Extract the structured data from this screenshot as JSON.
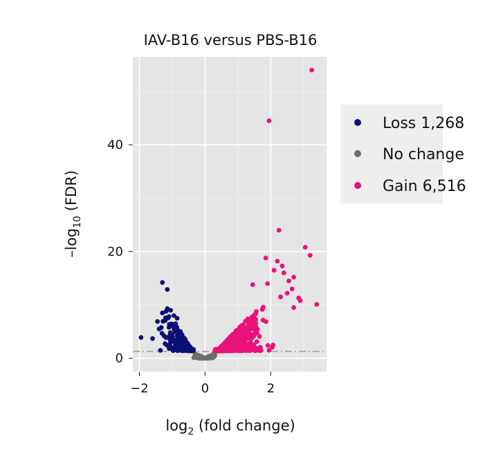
{
  "chart_data": {
    "type": "scatter",
    "title": "IAV-B16 versus PBS-B16",
    "xlabel": {
      "base": "log",
      "sub": "2",
      "rest": " (fold change)"
    },
    "ylabel": {
      "prefix": "–log",
      "sub": "10",
      "rest": " (FDR)"
    },
    "xlim": [
      -2.2,
      3.7
    ],
    "ylim": [
      -2.5,
      56.5
    ],
    "xticks": [
      -2,
      0,
      2
    ],
    "xtick_labels": [
      "−2",
      "0",
      "2"
    ],
    "yticks": [
      0,
      20,
      40
    ],
    "ytick_labels": [
      "0",
      "20",
      "40"
    ],
    "grid": true,
    "panel_background": "#e5e5e5",
    "threshold_line": {
      "y": 1.3,
      "style": "dash-dot",
      "color": "#aaaaaa"
    },
    "legend": {
      "placement": "right"
    },
    "series": [
      {
        "name": "Loss",
        "count_label": "1,268",
        "color": "#0a1172",
        "points": [
          [
            -1.95,
            3.9
          ],
          [
            -1.6,
            3.7
          ],
          [
            -1.3,
            14.2
          ],
          [
            -1.15,
            12.9
          ],
          [
            -1.4,
            5.5
          ],
          [
            -1.45,
            6.9
          ],
          [
            -1.2,
            7.6
          ],
          [
            -1.3,
            8.5
          ],
          [
            -1.05,
            9.0
          ],
          [
            -1.15,
            9.3
          ],
          [
            -0.95,
            8.0
          ],
          [
            -0.85,
            7.5
          ],
          [
            -0.75,
            5.0
          ],
          [
            -0.9,
            6.5
          ],
          [
            -1.1,
            5.8
          ],
          [
            -0.7,
            4.2
          ],
          [
            -0.6,
            3.5
          ],
          [
            -0.55,
            2.9
          ],
          [
            -0.5,
            2.4
          ],
          [
            -0.45,
            2.1
          ],
          [
            -1.0,
            4.5
          ],
          [
            -1.25,
            4.2
          ],
          [
            -0.8,
            3.2
          ]
        ],
        "cloud": {
          "x_center": -0.9,
          "x_spread": 0.6,
          "y_max": 9,
          "n": 260
        }
      },
      {
        "name": "No change",
        "color": "#6e6e6e",
        "cloud": {
          "x_center": 0,
          "x_spread": 0.45,
          "y_max": 1.5,
          "n": 140
        }
      },
      {
        "name": "Gain",
        "count_label": "6,516",
        "color": "#e8127a",
        "points": [
          [
            3.25,
            54.0
          ],
          [
            1.95,
            44.5
          ],
          [
            2.25,
            24.0
          ],
          [
            3.05,
            20.8
          ],
          [
            3.2,
            19.3
          ],
          [
            1.85,
            18.8
          ],
          [
            2.2,
            18.2
          ],
          [
            2.35,
            17.3
          ],
          [
            2.1,
            16.5
          ],
          [
            2.4,
            16.0
          ],
          [
            2.7,
            15.2
          ],
          [
            2.55,
            14.5
          ],
          [
            1.45,
            13.8
          ],
          [
            1.9,
            14.0
          ],
          [
            2.65,
            13.0
          ],
          [
            3.4,
            10.1
          ],
          [
            2.9,
            10.8
          ],
          [
            2.5,
            12.2
          ],
          [
            2.3,
            11.5
          ],
          [
            2.7,
            9.5
          ],
          [
            2.85,
            11.3
          ]
        ],
        "cloud": {
          "x_center": 1.2,
          "x_spread": 1.0,
          "y_max": 12,
          "n": 900
        }
      }
    ]
  }
}
